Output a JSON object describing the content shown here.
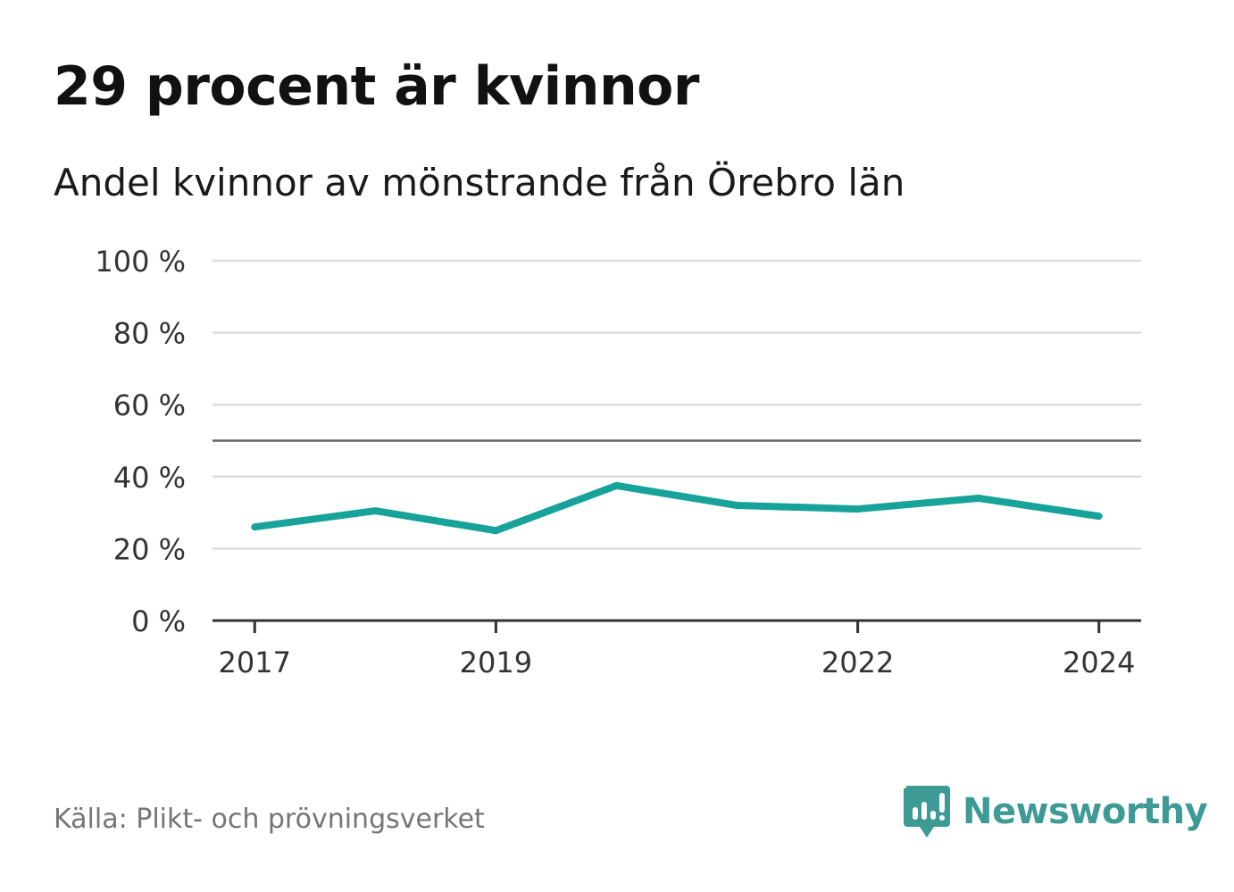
{
  "header": {
    "title": "29 procent är kvinnor",
    "subtitle": "Andel kvinnor av mönstrande från Örebro län"
  },
  "footer": {
    "source": "Källa: Plikt- och prövningsverket",
    "brand_name": "Newsworthy",
    "brand_icon": "newsworthy-logo-icon"
  },
  "colors": {
    "line": "#17a39a",
    "grid": "#dddddd",
    "reference": "#666666",
    "axis": "#333333",
    "brand": "#3e9a94"
  },
  "chart_data": {
    "type": "line",
    "title": "29 procent är kvinnor",
    "subtitle": "Andel kvinnor av mönstrande från Örebro län",
    "xlabel": "",
    "ylabel": "",
    "x": [
      2017,
      2018,
      2019,
      2020,
      2021,
      2022,
      2023,
      2024
    ],
    "xlim": [
      2016.65,
      2024.35
    ],
    "series": [
      {
        "name": "Andel kvinnor",
        "values": [
          26,
          30.5,
          25,
          37.5,
          32,
          31,
          34,
          29
        ]
      }
    ],
    "reference_line": 50,
    "ylim": [
      0,
      100
    ],
    "yticks": [
      0,
      20,
      40,
      60,
      80,
      100
    ],
    "ytick_labels": [
      "0 %",
      "20 %",
      "40 %",
      "60 %",
      "80 %",
      "100 %"
    ],
    "xticks": [
      2017,
      2019,
      2022,
      2024
    ],
    "xtick_labels": [
      "2017",
      "2019",
      "2022",
      "2024"
    ],
    "grid": true,
    "legend": "none"
  }
}
